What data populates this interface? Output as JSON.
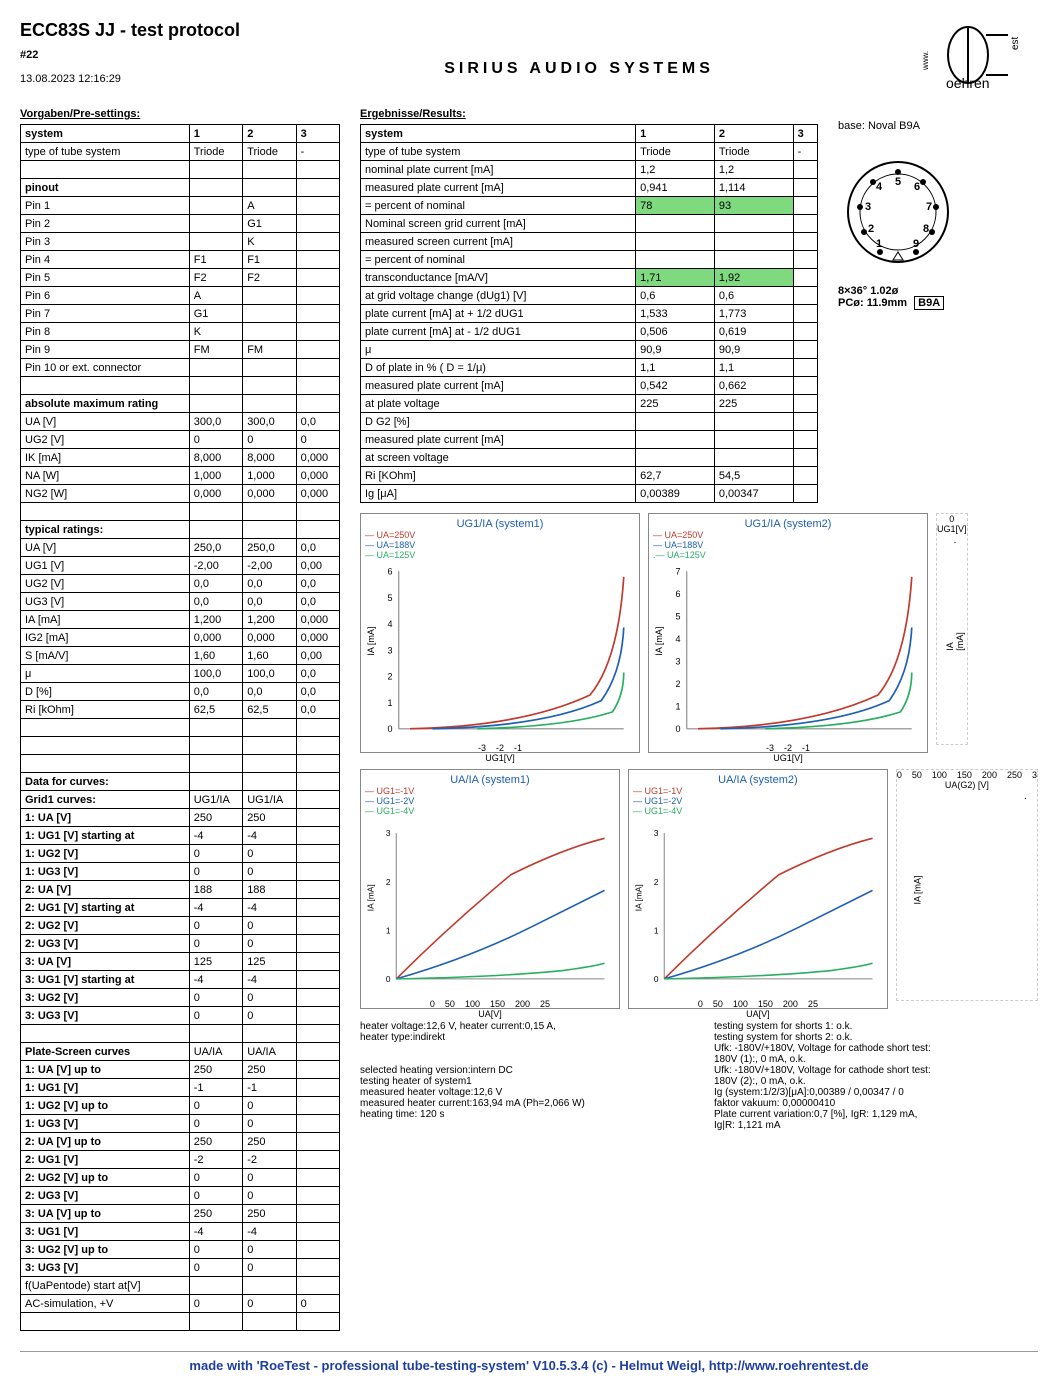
{
  "header": {
    "title": "ECC83S JJ  -  test protocol",
    "serial": "#22",
    "timestamp": "13.08.2023  12:16:29",
    "company": "SIRIUS   AUDIO   SYSTEMS",
    "logo_text": "oehren"
  },
  "presettings": {
    "section_title": "Vorgaben/Pre-settings:",
    "cols": [
      "system",
      "1",
      "2",
      "3"
    ],
    "rows": [
      [
        "type of tube system",
        "Triode",
        "Triode",
        "-"
      ],
      [
        "",
        "",
        "",
        ""
      ],
      [
        "pinout",
        "",
        "",
        ""
      ],
      [
        "Pin 1",
        "",
        "A",
        ""
      ],
      [
        "Pin 2",
        "",
        "G1",
        ""
      ],
      [
        "Pin 3",
        "",
        "K",
        ""
      ],
      [
        "Pin 4",
        "F1",
        "F1",
        ""
      ],
      [
        "Pin 5",
        "F2",
        "F2",
        ""
      ],
      [
        "Pin 6",
        "A",
        "",
        ""
      ],
      [
        "Pin 7",
        "G1",
        "",
        ""
      ],
      [
        "Pin 8",
        "K",
        "",
        ""
      ],
      [
        "Pin 9",
        "FM",
        "FM",
        ""
      ],
      [
        "Pin 10 or ext. connector",
        "",
        "",
        ""
      ],
      [
        "",
        "",
        "",
        ""
      ],
      [
        "absolute maximum rating",
        "",
        "",
        ""
      ],
      [
        "UA [V]",
        "300,0",
        "300,0",
        "0,0"
      ],
      [
        "UG2 [V]",
        "0",
        "0",
        "0"
      ],
      [
        "IK [mA]",
        "8,000",
        "8,000",
        "0,000"
      ],
      [
        "NA [W]",
        "1,000",
        "1,000",
        "0,000"
      ],
      [
        "NG2 [W]",
        "0,000",
        "0,000",
        "0,000"
      ],
      [
        "",
        "",
        "",
        ""
      ],
      [
        "typical ratings:",
        "",
        "",
        ""
      ],
      [
        "UA [V]",
        "250,0",
        "250,0",
        "0,0"
      ],
      [
        "UG1 [V]",
        "-2,00",
        "-2,00",
        "0,00"
      ],
      [
        "UG2 [V]",
        "0,0",
        "0,0",
        "0,0"
      ],
      [
        "UG3 [V]",
        "0,0",
        "0,0",
        "0,0"
      ],
      [
        "IA [mA]",
        "1,200",
        "1,200",
        "0,000"
      ],
      [
        "IG2 [mA]",
        "0,000",
        "0,000",
        "0,000"
      ],
      [
        "S [mA/V]",
        "1,60",
        "1,60",
        "0,00"
      ],
      [
        "μ",
        "100,0",
        "100,0",
        "0,0"
      ],
      [
        "D [%]",
        "0,0",
        "0,0",
        "0,0"
      ],
      [
        "Ri [kOhm]",
        "62,5",
        "62,5",
        "0,0"
      ],
      [
        "",
        "",
        "",
        ""
      ],
      [
        "",
        "",
        "",
        ""
      ],
      [
        "",
        "",
        "",
        ""
      ],
      [
        "Data for curves:",
        "",
        "",
        ""
      ],
      [
        "Grid1 curves:",
        "UG1/IA",
        "UG1/IA",
        ""
      ],
      [
        "1: UA [V]",
        "250",
        "250",
        ""
      ],
      [
        "1: UG1 [V] starting at",
        "-4",
        "-4",
        ""
      ],
      [
        "1: UG2 [V]",
        "0",
        "0",
        ""
      ],
      [
        "1: UG3 [V]",
        "0",
        "0",
        ""
      ],
      [
        "2: UA [V]",
        "188",
        "188",
        ""
      ],
      [
        "2: UG1 [V] starting at",
        "-4",
        "-4",
        ""
      ],
      [
        "2: UG2 [V]",
        "0",
        "0",
        ""
      ],
      [
        "2: UG3 [V]",
        "0",
        "0",
        ""
      ],
      [
        "3: UA [V]",
        "125",
        "125",
        ""
      ],
      [
        "3: UG1 [V] starting at",
        "-4",
        "-4",
        ""
      ],
      [
        "3: UG2 [V]",
        "0",
        "0",
        ""
      ],
      [
        "3: UG3 [V]",
        "0",
        "0",
        ""
      ],
      [
        "",
        "",
        "",
        ""
      ],
      [
        "Plate-Screen curves",
        "UA/IA",
        "UA/IA",
        ""
      ],
      [
        "1: UA [V] up to",
        "250",
        "250",
        ""
      ],
      [
        "1: UG1 [V]",
        "-1",
        "-1",
        ""
      ],
      [
        "1: UG2 [V] up to",
        "0",
        "0",
        ""
      ],
      [
        "1: UG3 [V]",
        "0",
        "0",
        ""
      ],
      [
        "2: UA [V] up to",
        "250",
        "250",
        ""
      ],
      [
        "2: UG1 [V]",
        "-2",
        "-2",
        ""
      ],
      [
        "2: UG2 [V] up to",
        "0",
        "0",
        ""
      ],
      [
        "2: UG3 [V]",
        "0",
        "0",
        ""
      ],
      [
        "3: UA [V] up to",
        "250",
        "250",
        ""
      ],
      [
        "3: UG1 [V]",
        "-4",
        "-4",
        ""
      ],
      [
        "3: UG2 [V] up to",
        "0",
        "0",
        ""
      ],
      [
        "3: UG3 [V]",
        "0",
        "0",
        ""
      ],
      [
        "f(UaPentode) start at[V]",
        "",
        "",
        ""
      ],
      [
        "AC-simulation, +V",
        "0",
        "0",
        "0"
      ],
      [
        "",
        "",
        "",
        ""
      ]
    ]
  },
  "results": {
    "section_title": "Ergebnisse/Results:",
    "cols": [
      "system",
      "1",
      "2",
      "3"
    ],
    "rows": [
      {
        "cells": [
          "type of tube system",
          "Triode",
          "Triode",
          "-"
        ],
        "hi": []
      },
      {
        "cells": [
          "nominal plate current [mA]",
          "1,2",
          "1,2",
          ""
        ],
        "hi": []
      },
      {
        "cells": [
          "measured plate current [mA]",
          "0,941",
          "1,114",
          ""
        ],
        "hi": []
      },
      {
        "cells": [
          "= percent of nominal",
          "78",
          "93",
          ""
        ],
        "hi": [
          1,
          2
        ]
      },
      {
        "cells": [
          "Nominal screen grid current [mA]",
          "",
          "",
          ""
        ],
        "hi": []
      },
      {
        "cells": [
          "measured screen current [mA]",
          "",
          "",
          ""
        ],
        "hi": []
      },
      {
        "cells": [
          "= percent of nominal",
          "",
          "",
          ""
        ],
        "hi": []
      },
      {
        "cells": [
          "transconductance [mA/V]",
          "1,71",
          "1,92",
          ""
        ],
        "hi": [
          1,
          2
        ]
      },
      {
        "cells": [
          "at grid voltage change (dUg1) [V]",
          "0,6",
          "0,6",
          ""
        ],
        "hi": []
      },
      {
        "cells": [
          "plate current [mA] at + 1/2 dUG1",
          "1,533",
          "1,773",
          ""
        ],
        "hi": []
      },
      {
        "cells": [
          "plate current [mA] at - 1/2 dUG1",
          "0,506",
          "0,619",
          ""
        ],
        "hi": []
      },
      {
        "cells": [
          "μ",
          "90,9",
          "90,9",
          ""
        ],
        "hi": []
      },
      {
        "cells": [
          "D of plate in % ( D = 1/μ)",
          "1,1",
          "1,1",
          ""
        ],
        "hi": []
      },
      {
        "cells": [
          "measured plate current [mA]",
          "0,542",
          "0,662",
          ""
        ],
        "hi": []
      },
      {
        "cells": [
          "at plate voltage",
          "225",
          "225",
          ""
        ],
        "hi": []
      },
      {
        "cells": [
          "D G2 [%]",
          "",
          "",
          ""
        ],
        "hi": []
      },
      {
        "cells": [
          "measured plate current [mA]",
          "",
          "",
          ""
        ],
        "hi": []
      },
      {
        "cells": [
          "at screen voltage",
          "",
          "",
          ""
        ],
        "hi": []
      },
      {
        "cells": [
          "Ri [KOhm]",
          "62,7",
          "54,5",
          ""
        ],
        "hi": []
      },
      {
        "cells": [
          "Ig [μA]",
          "0,00389",
          "0,00347",
          ""
        ],
        "hi": []
      }
    ]
  },
  "base": {
    "label": "base: Noval B9A",
    "pc_line1": "8×36°  1.02ø",
    "pc_line2": "PCø: 11.9mm",
    "pc_badge": "B9A"
  },
  "charts": {
    "row1": [
      {
        "title": "UG1/IA (system1)",
        "legends": [
          "— UA=250V",
          "— UA=188V",
          "— UA=125V"
        ],
        "xlabel": "UG1[V]",
        "ylabel": "IA [mA]",
        "xmin": -4,
        "xmax": 0,
        "xticks": [
          "-3",
          "-2",
          "-1"
        ],
        "ymax": 6,
        "colors": [
          "#c0392b",
          "#1e5fb3",
          "#27ae60"
        ]
      },
      {
        "title": "UG1/IA (system2)",
        "legends": [
          "— UA=250V",
          "— UA=188V",
          ".— UA=125V"
        ],
        "xlabel": "UG1[V]",
        "ylabel": "IA [mA]",
        "xmin": -4,
        "xmax": 0,
        "xticks": [
          "-3",
          "-2",
          "-1"
        ],
        "ymax": 7,
        "colors": [
          "#c0392b",
          "#1e5fb3",
          "#27ae60"
        ]
      },
      {
        "title": "",
        "legends": [],
        "xlabel": "UG1[V]",
        "ylabel": "IA [mA]",
        "xticks": [
          "0"
        ],
        "empty": true
      }
    ],
    "row2": [
      {
        "title": "UA/IA (system1)",
        "legends": [
          "— UG1=-1V",
          "— UG1=-2V",
          "— UG1=-4V"
        ],
        "xlabel": "UA[V]",
        "ylabel": "IA [mA]",
        "xmax": 250,
        "xticks": [
          "0",
          "50",
          "100",
          "150",
          "200",
          "25"
        ],
        "ymax": 3,
        "colors": [
          "#c0392b",
          "#1e5fb3",
          "#27ae60"
        ]
      },
      {
        "title": "UA/IA (system2)",
        "legends": [
          "— UG1=-1V",
          "— UG1=-2V",
          "— UG1=-4V"
        ],
        "xlabel": "UA[V]",
        "ylabel": "IA [mA]",
        "xmax": 250,
        "xticks": [
          "0",
          "50",
          "100",
          "150",
          "200",
          "25"
        ],
        "ymax": 3,
        "colors": [
          "#c0392b",
          "#1e5fb3",
          "#27ae60"
        ]
      },
      {
        "title": "",
        "legends": [],
        "xlabel": "UA(G2) [V]",
        "ylabel": "IA [mA]",
        "xticks": [
          "0",
          "50",
          "100",
          "150",
          "200",
          "250",
          "3"
        ],
        "empty": true
      }
    ]
  },
  "footer": {
    "col1_lines": [
      "heater voltage:12,6 V, heater current:0,15 A,",
      "heater type:indirekt",
      "",
      "",
      "selected heating version:intern DC",
      "testing heater of system1",
      "measured heater voltage:12,6 V",
      "measured heater current:163,94 mA (Ph=2,066 W)",
      "heating time: 120 s"
    ],
    "col2_lines": [
      "testing system for shorts 1: o.k.",
      "testing system for shorts 2: o.k.",
      "Ufk: -180V/+180V, Voltage for cathode short test:",
      "180V (1):, 0 mA, o.k.",
      "Ufk: -180V/+180V, Voltage for cathode short test:",
      "180V (2):, 0 mA, o.k.",
      "Ig (system:1/2/3)[μA]:0,00389 / 0,00347 / 0",
      "faktor vakuum: 0,00000410",
      "Plate current variation:0,7 [%], IgR: 1,129 mA,",
      "Ig|R: 1,121 mA"
    ]
  },
  "banner": "made with 'RoeTest - professional tube-testing-system' V10.5.3.4 (c) - Helmut Weigl, http://www.roehrentest.de"
}
